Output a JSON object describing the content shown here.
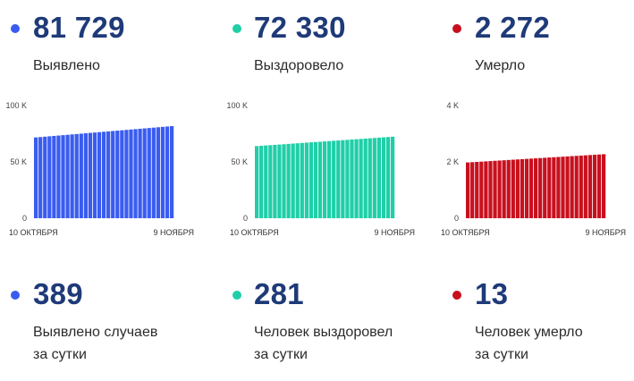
{
  "colors": {
    "detected": "#3a5cf0",
    "recovered": "#1fcfa8",
    "died": "#c8101e",
    "number": "#1e3a78"
  },
  "stats": [
    {
      "value": "81 729",
      "label": "Выявлено"
    },
    {
      "value": "72 330",
      "label": "Выздоровело"
    },
    {
      "value": "2 272",
      "label": "Умерло"
    }
  ],
  "daily": [
    {
      "value": "389",
      "line1": "Выявлено случаев",
      "line2": "за сутки"
    },
    {
      "value": "281",
      "line1": "Человек выздоровел",
      "line2": "за сутки"
    },
    {
      "value": "13",
      "line1": "Человек умерло",
      "line2": "за сутки"
    }
  ],
  "chart_data": [
    {
      "type": "bar",
      "title": "",
      "xlabel": "",
      "ylabel": "",
      "ylim": [
        0,
        100000
      ],
      "yticks": [
        0,
        50000,
        100000
      ],
      "ytick_labels": [
        "0",
        "50 K",
        "100 K"
      ],
      "x_start_label": "10 ОКТЯБРЯ",
      "x_end_label": "9 НОЯБРЯ",
      "bar_count": 31,
      "start_value": 71700,
      "end_value": 81729,
      "grid": false
    },
    {
      "type": "bar",
      "title": "",
      "xlabel": "",
      "ylabel": "",
      "ylim": [
        0,
        100000
      ],
      "yticks": [
        0,
        50000,
        100000
      ],
      "ytick_labels": [
        "0",
        "50 K",
        "100 K"
      ],
      "x_start_label": "10 ОКТЯБРЯ",
      "x_end_label": "9 НОЯБРЯ",
      "bar_count": 31,
      "start_value": 64000,
      "end_value": 72330,
      "grid": false
    },
    {
      "type": "bar",
      "title": "",
      "xlabel": "",
      "ylabel": "",
      "ylim": [
        0,
        4000
      ],
      "yticks": [
        0,
        2000,
        4000
      ],
      "ytick_labels": [
        "0",
        "2 K",
        "4 K"
      ],
      "x_start_label": "10 ОКТЯБРЯ",
      "x_end_label": "9 НОЯБРЯ",
      "bar_count": 31,
      "start_value": 1980,
      "end_value": 2272,
      "grid": false
    }
  ]
}
